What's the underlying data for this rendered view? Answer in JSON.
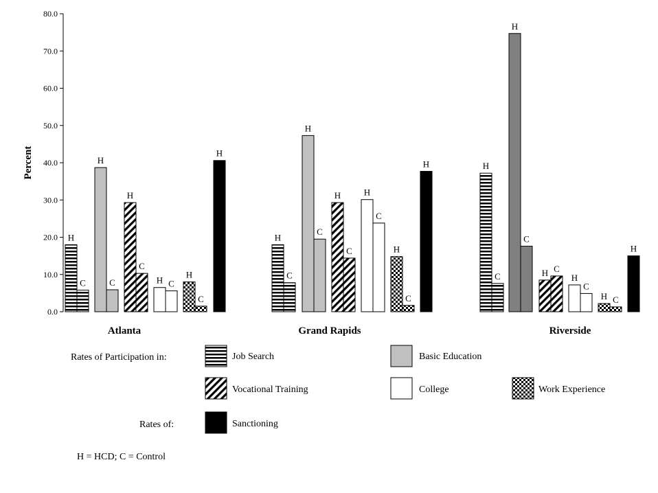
{
  "chart_data": {
    "type": "bar",
    "ylabel": "Percent",
    "xlabel": "",
    "ylim": [
      0,
      80
    ],
    "yticks": [
      "0.0",
      "10.0",
      "20.0",
      "30.0",
      "40.0",
      "50.0",
      "60.0",
      "70.0",
      "80.0"
    ],
    "groups": [
      {
        "name": "Atlanta",
        "bars": [
          {
            "series": "Job Search",
            "tag": "H",
            "value": 18.0
          },
          {
            "series": "Job Search",
            "tag": "C",
            "value": 5.8
          },
          {
            "series": "Basic Education",
            "tag": "H",
            "value": 38.7
          },
          {
            "series": "Basic Education",
            "tag": "C",
            "value": 5.9
          },
          {
            "series": "Vocational Training",
            "tag": "H",
            "value": 29.3
          },
          {
            "series": "Vocational Training",
            "tag": "C",
            "value": 10.3
          },
          {
            "series": "College",
            "tag": "H",
            "value": 6.5
          },
          {
            "series": "College",
            "tag": "C",
            "value": 5.6
          },
          {
            "series": "Work Experience",
            "tag": "H",
            "value": 8.0
          },
          {
            "series": "Work Experience",
            "tag": "C",
            "value": 1.5
          },
          {
            "series": "Sanctioning",
            "tag": "H",
            "value": 40.6
          }
        ]
      },
      {
        "name": "Grand Rapids",
        "bars": [
          {
            "series": "Job Search",
            "tag": "H",
            "value": 18.0
          },
          {
            "series": "Job Search",
            "tag": "C",
            "value": 7.8
          },
          {
            "series": "Basic Education",
            "tag": "H",
            "value": 47.3
          },
          {
            "series": "Basic Education",
            "tag": "C",
            "value": 19.5
          },
          {
            "series": "Vocational Training",
            "tag": "H",
            "value": 29.3
          },
          {
            "series": "Vocational Training",
            "tag": "C",
            "value": 14.4
          },
          {
            "series": "College",
            "tag": "H",
            "value": 30.1
          },
          {
            "series": "College",
            "tag": "C",
            "value": 23.8
          },
          {
            "series": "Work Experience",
            "tag": "H",
            "value": 14.8
          },
          {
            "series": "Work Experience",
            "tag": "C",
            "value": 1.7
          },
          {
            "series": "Sanctioning",
            "tag": "H",
            "value": 37.7
          }
        ]
      },
      {
        "name": "Riverside",
        "bars": [
          {
            "series": "Job Search",
            "tag": "H",
            "value": 37.2
          },
          {
            "series": "Job Search",
            "tag": "C",
            "value": 7.6
          },
          {
            "series": "Basic Education",
            "tag": "H",
            "value": 74.7
          },
          {
            "series": "Basic Education",
            "tag": "C",
            "value": 17.6
          },
          {
            "series": "Vocational Training",
            "tag": "H",
            "value": 8.5
          },
          {
            "series": "Vocational Training",
            "tag": "C",
            "value": 9.6
          },
          {
            "series": "College",
            "tag": "H",
            "value": 7.2
          },
          {
            "series": "College",
            "tag": "C",
            "value": 4.9
          },
          {
            "series": "Work Experience",
            "tag": "H",
            "value": 2.2
          },
          {
            "series": "Work Experience",
            "tag": "C",
            "value": 1.3
          },
          {
            "series": "Sanctioning",
            "tag": "H",
            "value": 15.0
          }
        ]
      }
    ]
  },
  "legend": {
    "participation_label": "Rates of Participation in:",
    "rates_label": "Rates of:",
    "items": [
      {
        "series": "Job Search",
        "label": "Job Search"
      },
      {
        "series": "Basic Education",
        "label": "Basic Education"
      },
      {
        "series": "Vocational Training",
        "label": "Vocational Training"
      },
      {
        "series": "College",
        "label": "College"
      },
      {
        "series": "Work Experience",
        "label": "Work Experience"
      },
      {
        "series": "Sanctioning",
        "label": "Sanctioning"
      }
    ],
    "footnote": "H =  HCD; C =  Control"
  },
  "colors": {
    "basic_education_atlanta_gr": "#c0c0c0",
    "basic_education_riverside": "#808080",
    "sanctioning": "#000000",
    "college": "#ffffff"
  }
}
